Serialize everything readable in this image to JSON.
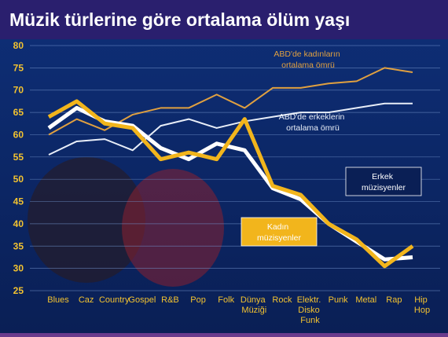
{
  "chart_data": {
    "type": "line",
    "title": "Müzik türlerine göre ortalama ölüm yaşı",
    "categories": [
      "Blues",
      "Caz",
      "Country",
      "Gospel",
      "R&B",
      "Pop",
      "Folk",
      "Dünya Müziği",
      "Rock",
      "Elektr. Disko Funk",
      "Punk",
      "Metal",
      "Rap",
      "Hip Hop"
    ],
    "ylim": [
      25,
      80
    ],
    "yticks": [
      25,
      30,
      35,
      40,
      45,
      50,
      55,
      60,
      65,
      70,
      75,
      80
    ],
    "grid": true,
    "series": [
      {
        "name": "ABD'de kadınların ortalama ömrü",
        "color": "#e0a040",
        "width": 2,
        "values": [
          60,
          63.5,
          61,
          64.5,
          66,
          66,
          69,
          66,
          70.5,
          70.5,
          71.5,
          72,
          75,
          74
        ]
      },
      {
        "name": "ABD'de erkeklerin ortalama ömrü",
        "color": "#e8eef8",
        "width": 2,
        "values": [
          55.5,
          58.5,
          59,
          56.5,
          62,
          63.5,
          61.5,
          63,
          64,
          65,
          65,
          66,
          67,
          67
        ]
      },
      {
        "name": "Erkek müzisyenler",
        "color": "#ffffff",
        "width": 5,
        "values": [
          61.5,
          66,
          63,
          62,
          57,
          54.5,
          58,
          56.5,
          48,
          45.5,
          40,
          36,
          32,
          32.5
        ]
      },
      {
        "name": "Kadın müzisyenler",
        "color": "#f2b51c",
        "width": 5,
        "values": [
          64,
          67.5,
          62.5,
          61.5,
          54.5,
          56,
          54.5,
          63.5,
          48.5,
          46.5,
          40,
          36.5,
          30.5,
          35
        ]
      }
    ]
  }
}
